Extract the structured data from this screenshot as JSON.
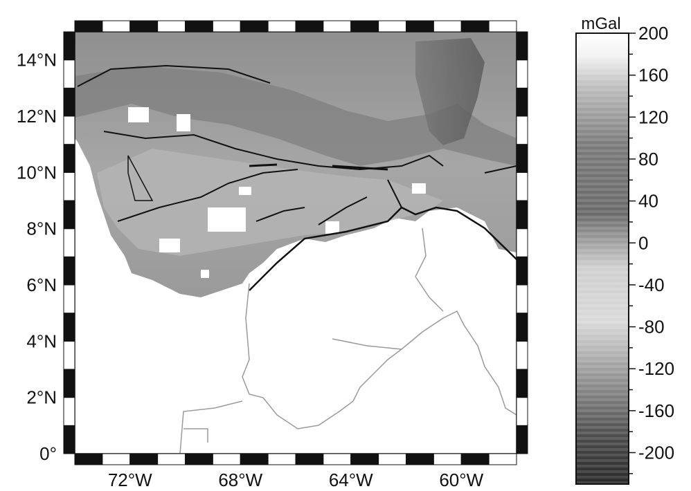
{
  "map": {
    "lat_labels": [
      "14°N",
      "12°N",
      "10°N",
      "8°N",
      "6°N",
      "4°N",
      "2°N",
      "0°"
    ],
    "lon_labels": [
      "72°W",
      "68°W",
      "64°W",
      "60°W"
    ],
    "extent": {
      "lon_min": -74,
      "lon_max": -58,
      "lat_min": 0,
      "lat_max": 15
    },
    "lat_ticks": [
      14,
      12,
      10,
      8,
      6,
      4,
      2,
      0
    ],
    "lon_ticks": [
      -72,
      -68,
      -64,
      -60
    ]
  },
  "colorbar": {
    "unit": "mGal",
    "tick_labels": [
      "200",
      "160",
      "120",
      "80",
      "40",
      "0",
      "-40",
      "-80",
      "-120",
      "-160",
      "-200"
    ],
    "range": [
      -230,
      200
    ],
    "colors": {
      "high": "#ffffff",
      "low": "#2a2a2a"
    }
  },
  "colors": {
    "frame": "#111111",
    "land_blank": "#ffffff",
    "relief_mid": "#9a9a9a"
  }
}
